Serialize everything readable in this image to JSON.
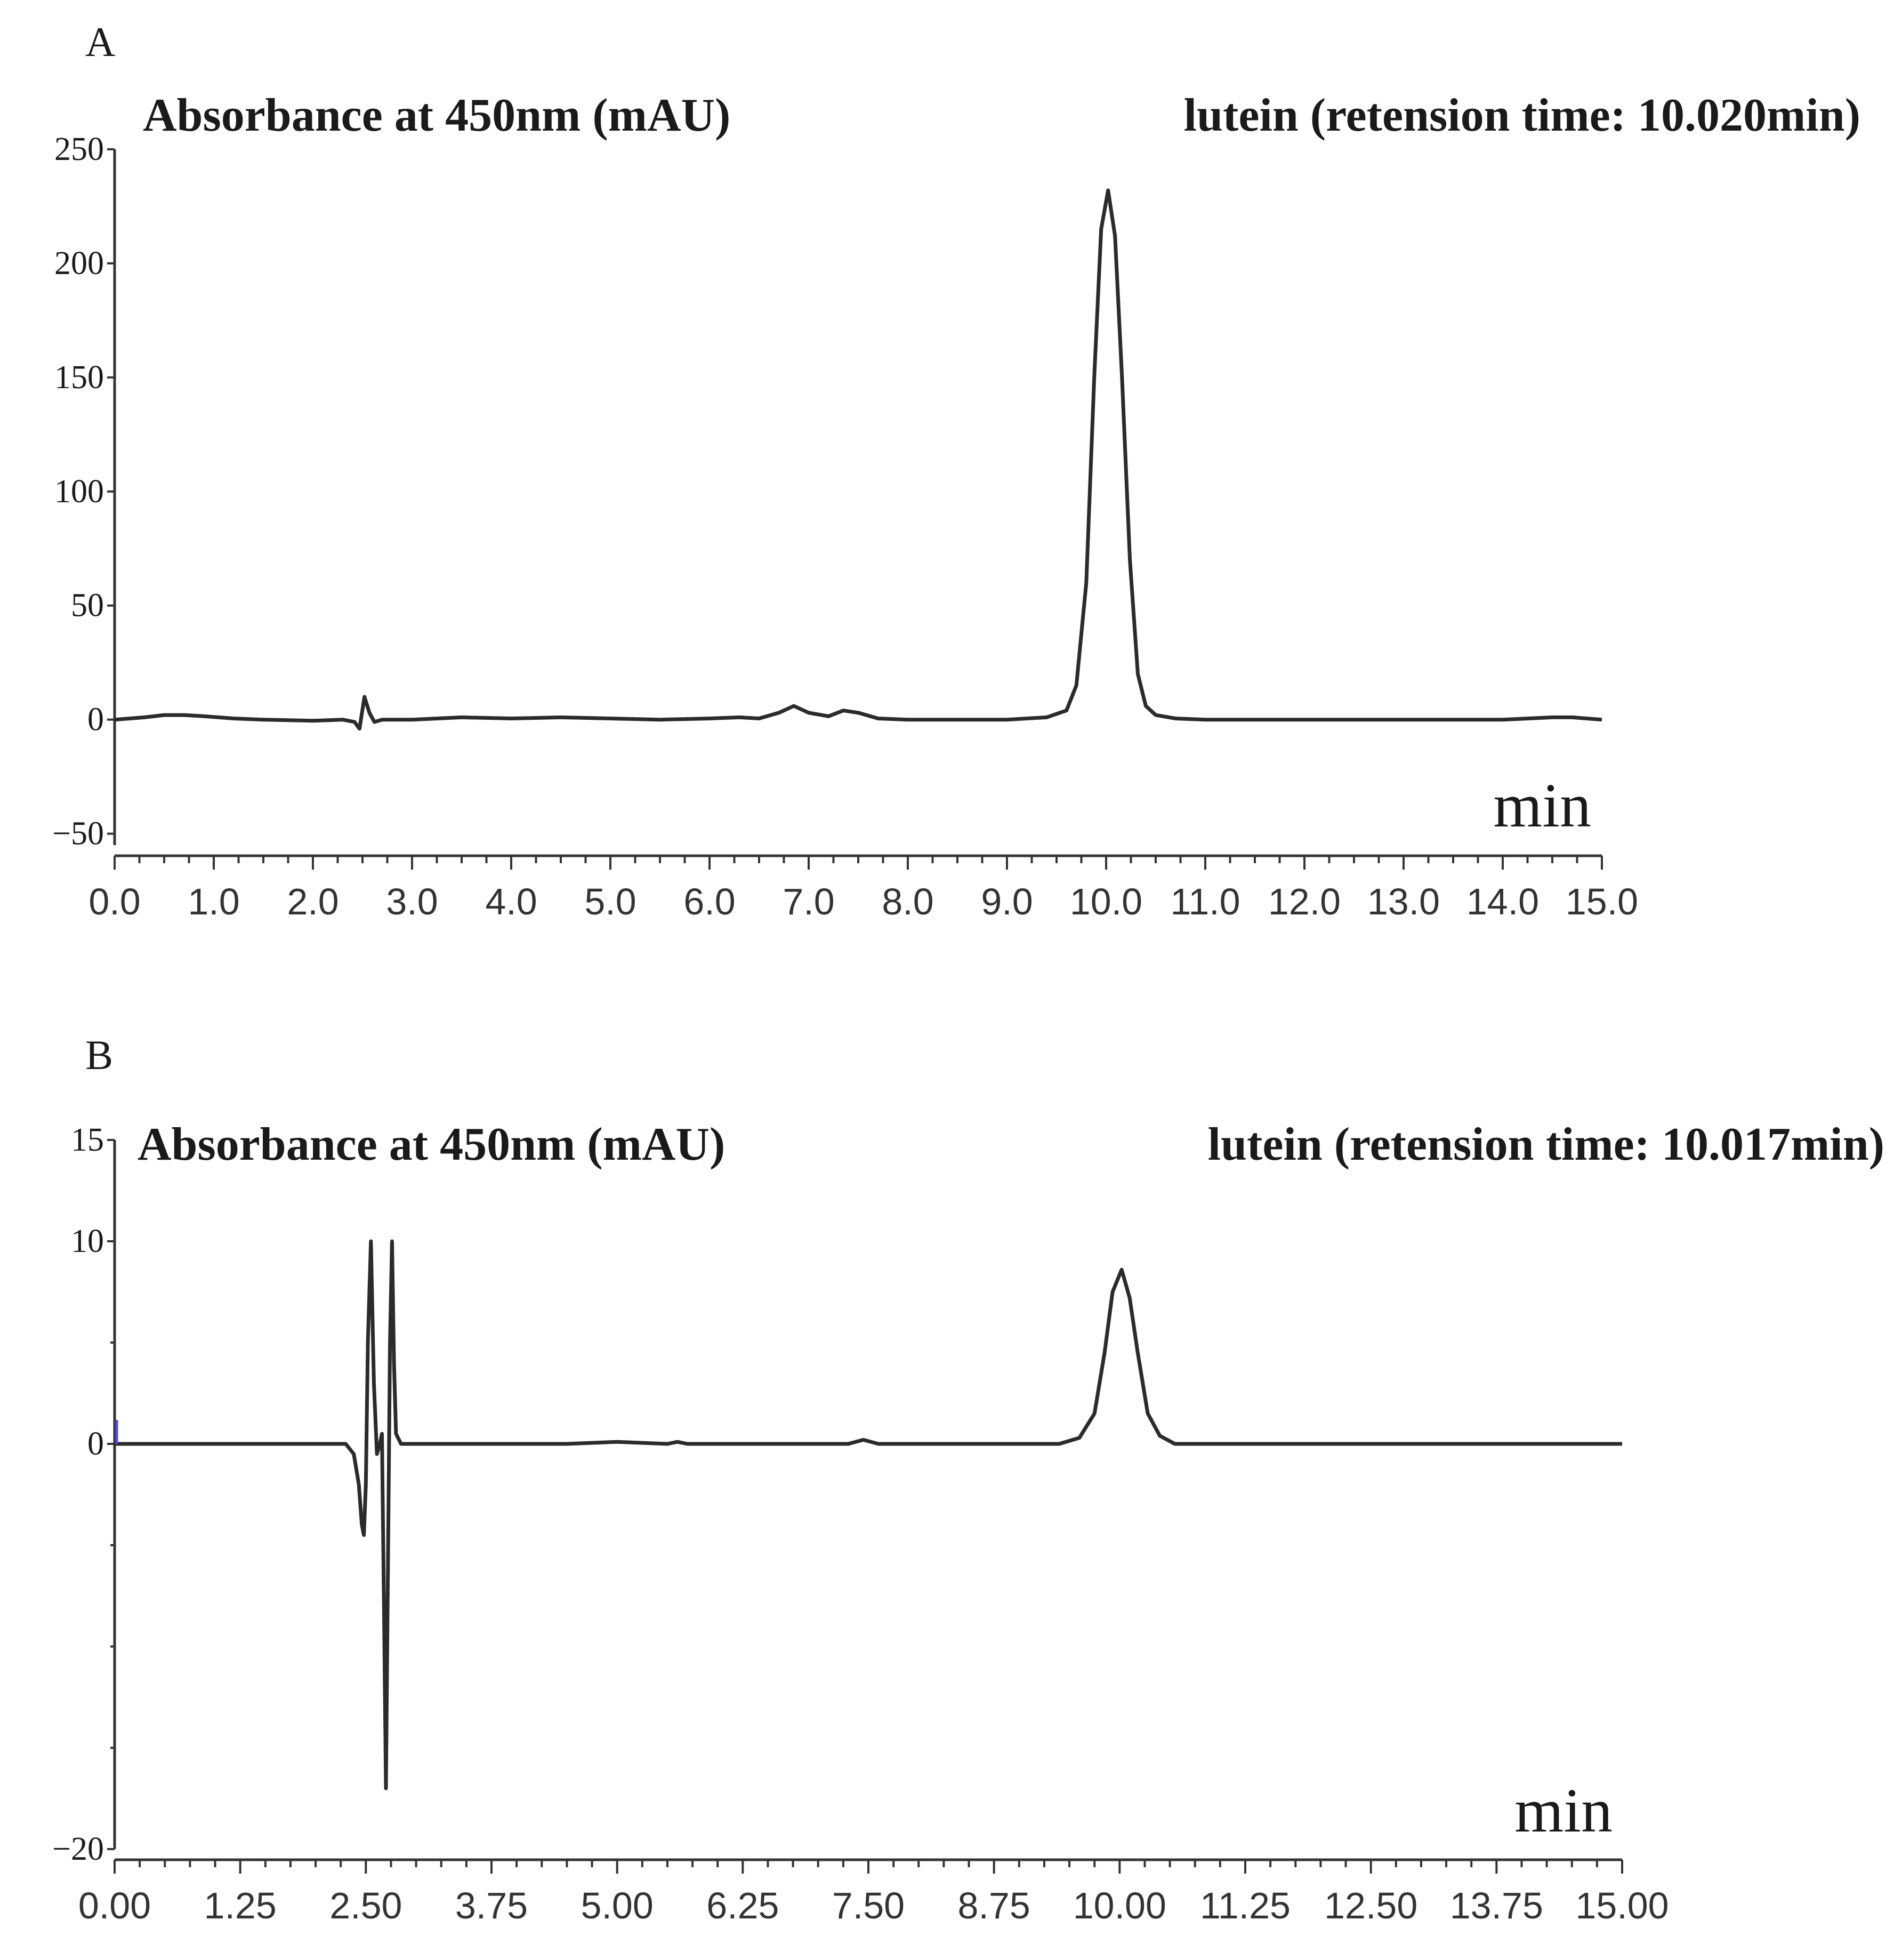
{
  "chart_data": [
    {
      "type": "line",
      "panel_label": "A",
      "ylabel": "Absorbance at 450nm (mAU)",
      "annotation": "lutein (retension time: 10.020min)",
      "xlabel": "min",
      "xlim": [
        0,
        15
      ],
      "ylim": [
        -55,
        250
      ],
      "yticks": [
        "250",
        "200",
        "150",
        "100",
        "50",
        "0",
        "−50"
      ],
      "ytick_values": [
        250,
        200,
        150,
        100,
        50,
        0,
        -50
      ],
      "xticks": [
        "0.0",
        "1.0",
        "2.0",
        "3.0",
        "4.0",
        "5.0",
        "6.0",
        "7.0",
        "8.0",
        "9.0",
        "10.0",
        "11.0",
        "12.0",
        "13.0",
        "14.0",
        "15.0"
      ],
      "xtick_values": [
        0,
        1,
        2,
        3,
        4,
        5,
        6,
        7,
        8,
        9,
        10,
        11,
        12,
        13,
        14,
        15
      ],
      "minor_per_major": 4,
      "line_color": "#2b2b2b",
      "series": [
        {
          "x": [
            0,
            0.3,
            0.5,
            0.7,
            0.9,
            1.2,
            1.5,
            2.0,
            2.3,
            2.42,
            2.47,
            2.52,
            2.57,
            2.62,
            2.7,
            3.0,
            3.5,
            4.0,
            4.5,
            5.0,
            5.5,
            6.0,
            6.3,
            6.5,
            6.7,
            6.85,
            7.0,
            7.2,
            7.35,
            7.5,
            7.7,
            8.0,
            8.5,
            9.0,
            9.4,
            9.6,
            9.7,
            9.8,
            9.88,
            9.95,
            10.02,
            10.09,
            10.16,
            10.24,
            10.32,
            10.4,
            10.5,
            10.7,
            11.0,
            12.0,
            13.0,
            14.0,
            14.5,
            14.7,
            15.0
          ],
          "y": [
            0,
            1,
            2,
            2,
            1.5,
            0.5,
            0,
            -0.5,
            0,
            -1,
            -4,
            10,
            3,
            -1,
            0,
            0,
            1,
            0.5,
            1,
            0.5,
            0,
            0.5,
            1,
            0.5,
            3,
            6,
            3,
            1.5,
            4,
            3,
            0.5,
            0,
            0,
            0,
            1,
            4,
            15,
            60,
            150,
            215,
            232,
            212,
            150,
            70,
            20,
            6,
            2,
            0.5,
            0,
            0,
            0,
            0,
            1,
            1,
            0
          ]
        }
      ]
    },
    {
      "type": "line",
      "panel_label": "B",
      "ylabel": "Absorbance at 450nm (mAU)",
      "annotation": "lutein (retension time: 10.017min)",
      "xlabel": "min",
      "xlim": [
        0,
        15
      ],
      "ylim": [
        -20,
        15
      ],
      "yticks": [
        "15",
        "10",
        "0",
        "−20"
      ],
      "ytick_values": [
        15,
        10,
        0,
        -20
      ],
      "minor_y": [
        5,
        -5,
        -10,
        -15
      ],
      "xticks": [
        "0.00",
        "1.25",
        "2.50",
        "3.75",
        "5.00",
        "6.25",
        "7.50",
        "8.75",
        "10.00",
        "11.25",
        "12.50",
        "13.75",
        "15.00"
      ],
      "xtick_values": [
        0,
        1.25,
        2.5,
        3.75,
        5,
        6.25,
        7.5,
        8.75,
        10,
        11.25,
        12.5,
        13.75,
        15
      ],
      "minor_per_major": 5,
      "line_color": "#2b2b2b",
      "series": [
        {
          "x": [
            0,
            1.0,
            2.0,
            2.3,
            2.38,
            2.43,
            2.46,
            2.48,
            2.5,
            2.52,
            2.55,
            2.58,
            2.61,
            2.64,
            2.66,
            2.68,
            2.7,
            2.72,
            2.74,
            2.76,
            2.78,
            2.8,
            2.85,
            2.95,
            3.5,
            4.5,
            5.0,
            5.5,
            5.6,
            5.7,
            6.5,
            7.3,
            7.45,
            7.6,
            8.5,
            9.0,
            9.4,
            9.6,
            9.75,
            9.85,
            9.93,
            10.02,
            10.1,
            10.18,
            10.28,
            10.4,
            10.55,
            11.0,
            12.0,
            13.0,
            14.0,
            15.0
          ],
          "y": [
            0,
            0,
            0,
            0,
            -0.5,
            -2,
            -4,
            -4.5,
            -2,
            5,
            10,
            3,
            -0.5,
            0,
            0.5,
            -8,
            -17,
            -6,
            5,
            10,
            4,
            0.5,
            0,
            0,
            0,
            0,
            0.1,
            0,
            0.1,
            0,
            0,
            0,
            0.2,
            0,
            0,
            0,
            0,
            0.3,
            1.5,
            4.5,
            7.5,
            8.6,
            7.2,
            4.5,
            1.5,
            0.4,
            0,
            0,
            0,
            0,
            0,
            0
          ]
        }
      ]
    }
  ]
}
